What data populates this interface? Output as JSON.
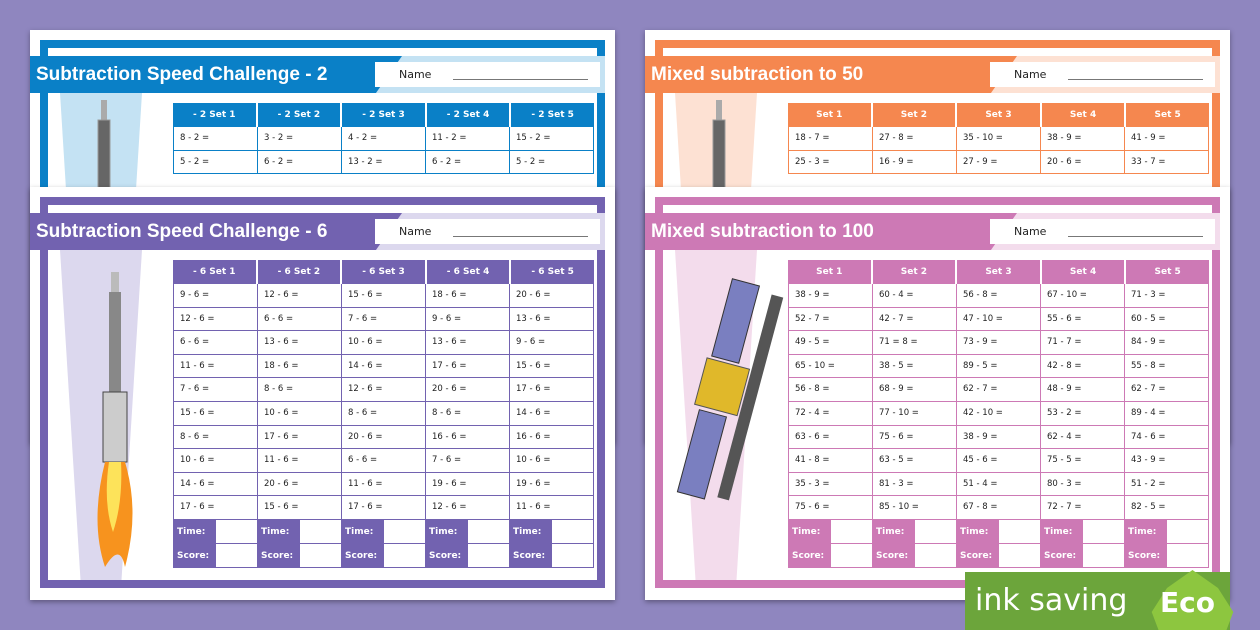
{
  "sheets": [
    {
      "id": "blue",
      "title": "Subtraction Speed Challenge - 2",
      "name_label": "Name",
      "color": "#0a80c7",
      "light": "#c4e2f3",
      "headers": [
        "- 2 Set 1",
        "- 2 Set 2",
        "- 2 Set 3",
        "- 2 Set 4",
        "- 2 Set 5"
      ],
      "rows": [
        [
          "8 - 2 =",
          "3 - 2 =",
          "4 - 2 =",
          "11 - 2 =",
          "15 - 2 ="
        ],
        [
          "5 - 2 =",
          "6 - 2 =",
          "13 - 2 =",
          "6 - 2 =",
          "5 - 2 ="
        ]
      ],
      "footer": []
    },
    {
      "id": "orange",
      "title": "Mixed subtraction to 50",
      "name_label": "Name",
      "color": "#f5874f",
      "light": "#fde1d3",
      "headers": [
        "Set 1",
        "Set 2",
        "Set 3",
        "Set 4",
        "Set 5"
      ],
      "rows": [
        [
          "18 - 7 =",
          "27 - 8 =",
          "35 - 10 =",
          "38 - 9 =",
          "41 - 9 ="
        ],
        [
          "25 - 3 =",
          "16 - 9 =",
          "27 - 9 =",
          "20 - 6 =",
          "33 - 7 ="
        ]
      ],
      "footer": []
    },
    {
      "id": "purple",
      "title": "Subtraction Speed Challenge - 6",
      "name_label": "Name",
      "color": "#7262b0",
      "light": "#dcd8ee",
      "headers": [
        "- 6 Set 1",
        "- 6 Set 2",
        "- 6 Set 3",
        "- 6 Set 4",
        "- 6  Set 5"
      ],
      "rows": [
        [
          "9 - 6 =",
          "12 - 6 =",
          "15 - 6 =",
          "18 - 6 =",
          "20 - 6 ="
        ],
        [
          "12 - 6 =",
          "6 - 6 =",
          "7 - 6 =",
          "9 - 6 =",
          "13 - 6 ="
        ],
        [
          "6 - 6 =",
          "13 - 6 =",
          "10 - 6 =",
          "13 - 6 =",
          "9 - 6 ="
        ],
        [
          "11 - 6 =",
          "18 - 6 =",
          "14 - 6 =",
          "17 - 6 =",
          "15 - 6 ="
        ],
        [
          "7 - 6 =",
          "8 - 6 =",
          "12 - 6 =",
          "20 - 6 =",
          "17 - 6 ="
        ],
        [
          "15 - 6 =",
          "10 - 6 =",
          "8 - 6 =",
          "8 - 6 =",
          "14 - 6 ="
        ],
        [
          "8 - 6 =",
          "17 - 6 =",
          "20 - 6 =",
          "16 - 6 =",
          "16 - 6 ="
        ],
        [
          "10 - 6 =",
          "11 - 6 =",
          "6 - 6 =",
          "7 - 6 =",
          "10 - 6 ="
        ],
        [
          "14 - 6 =",
          "20 - 6 =",
          "11 - 6 =",
          "19 - 6 =",
          "19 - 6 ="
        ],
        [
          "17 - 6 =",
          "15 - 6 =",
          "17 - 6 =",
          "12 - 6 =",
          "11 - 6 ="
        ]
      ],
      "footer": [
        "Time:",
        "Score:"
      ]
    },
    {
      "id": "pink",
      "title": "Mixed subtraction to 100",
      "name_label": "Name",
      "color": "#cd79b5",
      "light": "#f3dcec",
      "headers": [
        "Set 1",
        "Set 2",
        "Set 3",
        "Set 4",
        "Set 5"
      ],
      "rows": [
        [
          "38 - 9 =",
          "60 - 4 =",
          "56 - 8 =",
          "67 - 10 =",
          "71 - 3 ="
        ],
        [
          "52 - 7 =",
          "42 - 7 =",
          "47 - 10 =",
          "55 - 6 =",
          "60 - 5 ="
        ],
        [
          "49 - 5 =",
          "71 = 8 =",
          "73 - 9 =",
          "71 - 7 =",
          "84 - 9 ="
        ],
        [
          "65 - 10 =",
          "38 - 5 =",
          "89 - 5 =",
          "42 - 8 =",
          "55 - 8 ="
        ],
        [
          "56 - 8 =",
          "68 - 9 =",
          "62 - 7 =",
          "48 - 9 =",
          "62 - 7 ="
        ],
        [
          "72 - 4 =",
          "77 - 10 =",
          "42 - 10 =",
          "53 - 2 =",
          "89 - 4 ="
        ],
        [
          "63 - 6 =",
          "75 - 6 =",
          "38 - 9 =",
          "62 - 4 =",
          "74 - 6 ="
        ],
        [
          "41 - 8 =",
          "63 - 5 =",
          "45 - 6 =",
          "75 - 5 =",
          "43 - 9 ="
        ],
        [
          "35 - 3 =",
          "81 - 3 =",
          "51 - 4 =",
          "80 - 3 =",
          "51 - 2 ="
        ],
        [
          "75 - 6 =",
          "85 - 10 =",
          "67 - 8 =",
          "72 - 7 =",
          "82 - 5 ="
        ]
      ],
      "footer": [
        "Time:",
        "Score:"
      ]
    }
  ],
  "badge": {
    "text": "ink saving",
    "eco": "Eco",
    "color": "#6ca53b",
    "drop_color": "#8dc63f"
  }
}
